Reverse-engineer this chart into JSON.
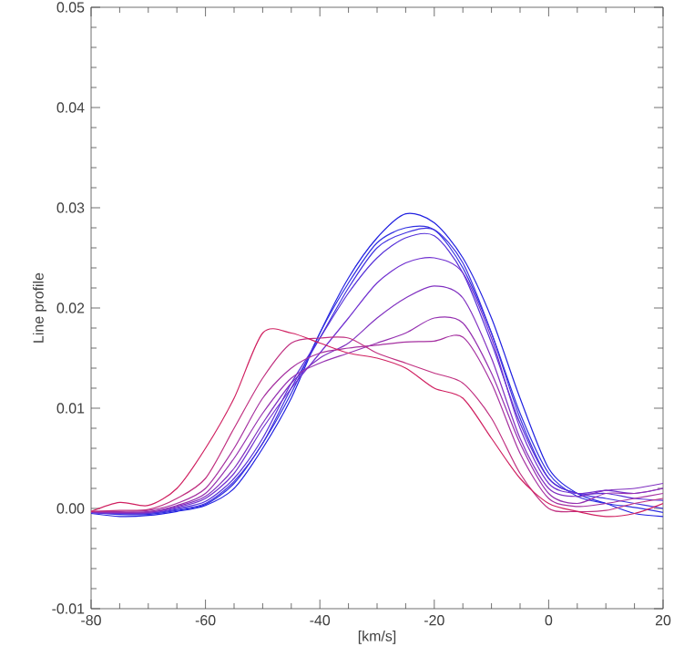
{
  "chart_data": {
    "type": "line",
    "xlabel": "[km/s]",
    "ylabel": "Line profile",
    "x": [
      -80,
      -75,
      -70,
      -65,
      -60,
      -55,
      -50,
      -45,
      -40,
      -35,
      -30,
      -25,
      -20,
      -15,
      -10,
      -5,
      0,
      5,
      10,
      15,
      20
    ],
    "xlim": [
      -80,
      20
    ],
    "xticks": [
      -80,
      -60,
      -40,
      -20,
      0,
      20
    ],
    "ylim": [
      -0.01,
      0.05
    ],
    "yticks": [
      {
        "value": -0.01,
        "label": "-0.01"
      },
      {
        "value": 0,
        "label": "0.00"
      },
      {
        "value": 0.01,
        "label": "0.01"
      },
      {
        "value": 0.02,
        "label": "0.02"
      },
      {
        "value": 0.03,
        "label": "0.03"
      },
      {
        "value": 0.04,
        "label": "0.04"
      },
      {
        "value": 0.05,
        "label": "0.05"
      }
    ],
    "marker": "none",
    "line_style": "solid",
    "series": [
      {
        "color": "#2020e0",
        "values": [
          -0.0005,
          -0.0008,
          -0.0007,
          -0.0003,
          0.0003,
          0.002,
          0.006,
          0.011,
          0.0175,
          0.023,
          0.027,
          0.0294,
          0.0285,
          0.025,
          0.019,
          0.011,
          0.004,
          0.0015,
          0.0005,
          -0.0005,
          -0.0008
        ]
      },
      {
        "color": "#3030e0",
        "values": [
          -0.0004,
          -0.0006,
          -0.0006,
          -0.0002,
          0.0004,
          0.0025,
          0.0065,
          0.0115,
          0.0175,
          0.0225,
          0.0265,
          0.028,
          0.0278,
          0.024,
          0.0175,
          0.0095,
          0.0035,
          0.0012,
          0.0005,
          0.0001,
          -0.0004
        ]
      },
      {
        "color": "#4030e0",
        "values": [
          -0.0004,
          -0.0005,
          -0.0005,
          -0.0001,
          0.0005,
          0.0027,
          0.0065,
          0.012,
          0.017,
          0.022,
          0.026,
          0.0275,
          0.0278,
          0.0245,
          0.0175,
          0.009,
          0.003,
          0.0015,
          0.001,
          0.0005,
          0.0
        ]
      },
      {
        "color": "#5530d8",
        "values": [
          -0.0004,
          -0.0005,
          -0.0005,
          0.0,
          0.0007,
          0.003,
          0.007,
          0.0125,
          0.017,
          0.0215,
          0.025,
          0.027,
          0.0272,
          0.0235,
          0.0165,
          0.0085,
          0.003,
          0.0015,
          0.0015,
          0.001,
          0.0008
        ]
      },
      {
        "color": "#7030d0",
        "values": [
          -0.0004,
          -0.0005,
          -0.0004,
          0.0001,
          0.001,
          0.0035,
          0.008,
          0.012,
          0.0155,
          0.019,
          0.0225,
          0.0245,
          0.025,
          0.0235,
          0.017,
          0.008,
          0.0025,
          0.0015,
          0.0018,
          0.0015,
          0.002
        ]
      },
      {
        "color": "#8030c0",
        "values": [
          -0.0004,
          -0.0004,
          -0.0004,
          0.0002,
          0.0012,
          0.004,
          0.0085,
          0.0125,
          0.015,
          0.0165,
          0.019,
          0.021,
          0.0222,
          0.021,
          0.015,
          0.007,
          0.002,
          0.0012,
          0.0018,
          0.002,
          0.0025
        ]
      },
      {
        "color": "#9530b0",
        "values": [
          -0.0003,
          -0.0004,
          -0.0003,
          0.0003,
          0.0015,
          0.005,
          0.0095,
          0.013,
          0.0145,
          0.0155,
          0.0165,
          0.0175,
          0.019,
          0.0185,
          0.0135,
          0.0065,
          0.0015,
          0.0005,
          0.0015,
          0.0015,
          0.002
        ]
      },
      {
        "color": "#a530a0",
        "values": [
          -0.0003,
          -0.0003,
          -0.0002,
          0.0005,
          0.002,
          0.006,
          0.011,
          0.014,
          0.0155,
          0.016,
          0.0163,
          0.0166,
          0.0167,
          0.0171,
          0.0125,
          0.0055,
          0.001,
          0.0002,
          0.0005,
          0.001,
          0.0015
        ]
      },
      {
        "color": "#c03080",
        "values": [
          -0.0003,
          -0.0002,
          -0.0001,
          0.001,
          0.003,
          0.008,
          0.013,
          0.0165,
          0.017,
          0.017,
          0.0155,
          0.0145,
          0.0135,
          0.0125,
          0.009,
          0.0035,
          0.0,
          -0.0003,
          -0.0002,
          0.0005,
          0.001
        ]
      },
      {
        "color": "#d02060",
        "values": [
          -0.0003,
          0.0006,
          0.0003,
          0.002,
          0.006,
          0.011,
          0.0175,
          0.0175,
          0.0165,
          0.0155,
          0.015,
          0.014,
          0.012,
          0.011,
          0.007,
          0.003,
          0.0005,
          -0.0003,
          -0.0008,
          -0.0005,
          0.0005
        ]
      }
    ]
  }
}
